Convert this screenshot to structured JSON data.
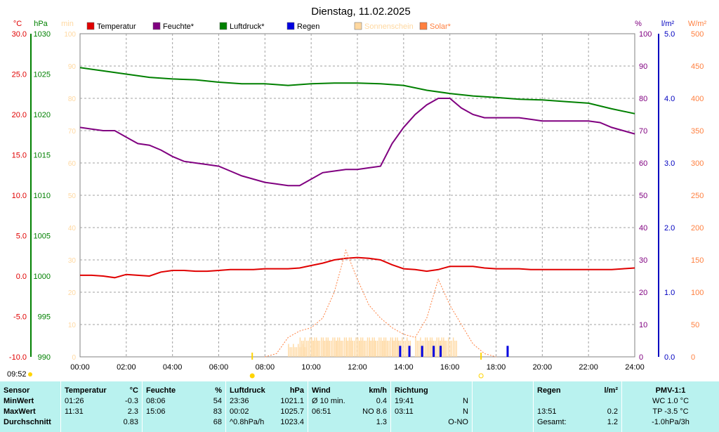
{
  "title": "Dienstag, 11.02.2025",
  "units": {
    "temp": "°C",
    "pressure": "hPa",
    "minutes": "min",
    "humidity": "%",
    "rain": "l/m²",
    "solar": "W/m²"
  },
  "legend": [
    {
      "label": "Temperatur",
      "color": "#e00000"
    },
    {
      "label": "Feuchte*",
      "color": "#800080"
    },
    {
      "label": "Luftdruck*",
      "color": "#008000"
    },
    {
      "label": "Regen",
      "color": "#0000e0"
    },
    {
      "label": "Sonnenschein",
      "color": "#ffd8a0"
    },
    {
      "label": "Solar*",
      "color": "#ff8040"
    }
  ],
  "time_stamp": "09:52",
  "chart_data": {
    "type": "line",
    "x_labels": [
      "00:00",
      "02:00",
      "04:00",
      "06:00",
      "08:00",
      "10:00",
      "12:00",
      "14:00",
      "16:00",
      "18:00",
      "20:00",
      "22:00",
      "24:00"
    ],
    "x_range": [
      0,
      24
    ],
    "axes": {
      "temp": {
        "range": [
          -10,
          30
        ],
        "ticks": [
          "30.0",
          "25.0",
          "20.0",
          "15.0",
          "10.0",
          "5.0",
          "0.0",
          "-5.0",
          "-10.0"
        ]
      },
      "pressure": {
        "range": [
          990,
          1030
        ],
        "ticks": [
          "1030",
          "1025",
          "1020",
          "1015",
          "1010",
          "1005",
          "1000",
          "995",
          "990"
        ]
      },
      "minutes": {
        "range": [
          0,
          100
        ],
        "ticks": [
          "100",
          "90",
          "80",
          "70",
          "60",
          "50",
          "40",
          "30",
          "20",
          "10",
          "0"
        ]
      },
      "humidity": {
        "range": [
          0,
          100
        ],
        "ticks": [
          "100",
          "90",
          "80",
          "70",
          "60",
          "50",
          "40",
          "30",
          "20",
          "10",
          "0"
        ]
      },
      "rain": {
        "range": [
          0,
          5
        ],
        "ticks": [
          "5.0",
          "4.0",
          "3.0",
          "2.0",
          "1.0",
          "0.0"
        ]
      },
      "solar": {
        "range": [
          0,
          500
        ],
        "ticks": [
          "500",
          "450",
          "400",
          "350",
          "300",
          "250",
          "200",
          "150",
          "100",
          "50",
          "0"
        ]
      }
    },
    "series": [
      {
        "name": "Temperatur",
        "axis": "temp",
        "color": "#e00000",
        "x": [
          0,
          0.5,
          1,
          1.5,
          2,
          2.5,
          3,
          3.5,
          4,
          4.5,
          5,
          5.5,
          6,
          6.5,
          7,
          7.5,
          8,
          8.5,
          9,
          9.5,
          10,
          10.5,
          11,
          11.5,
          12,
          12.5,
          13,
          13.5,
          14,
          14.5,
          15,
          15.5,
          16,
          16.5,
          17,
          17.5,
          18,
          18.5,
          19,
          19.5,
          20,
          20.5,
          21,
          21.5,
          22,
          22.5,
          23,
          23.5,
          24
        ],
        "values": [
          0.1,
          0.1,
          0,
          -0.2,
          0.2,
          0.1,
          0,
          0.5,
          0.7,
          0.7,
          0.6,
          0.6,
          0.7,
          0.8,
          0.8,
          0.8,
          0.9,
          0.9,
          0.9,
          1.0,
          1.3,
          1.6,
          2.0,
          2.2,
          2.3,
          2.2,
          2.0,
          1.4,
          0.9,
          0.8,
          0.6,
          0.8,
          1.2,
          1.2,
          1.2,
          1.0,
          0.9,
          0.9,
          0.9,
          0.8,
          0.8,
          0.8,
          0.8,
          0.8,
          0.8,
          0.8,
          0.8,
          0.9,
          1.0
        ]
      },
      {
        "name": "Feuchte*",
        "axis": "humidity",
        "color": "#800080",
        "x": [
          0,
          0.5,
          1,
          1.5,
          2,
          2.5,
          3,
          3.5,
          4,
          4.5,
          5,
          5.5,
          6,
          6.5,
          7,
          7.5,
          8,
          8.5,
          9,
          9.5,
          10,
          10.5,
          11,
          11.5,
          12,
          12.5,
          13,
          13.5,
          14,
          14.5,
          15,
          15.5,
          16,
          16.5,
          17,
          17.5,
          18,
          18.5,
          19,
          19.5,
          20,
          20.5,
          21,
          21.5,
          22,
          22.5,
          23,
          23.5,
          24
        ],
        "values": [
          71,
          70.5,
          70,
          70,
          68,
          66,
          65.5,
          64,
          62,
          60.5,
          60,
          59.5,
          59,
          57.5,
          56,
          55,
          54,
          53.5,
          53,
          53,
          55,
          57,
          57.5,
          58,
          58,
          58.5,
          59,
          66,
          71,
          75,
          78,
          80,
          80,
          77,
          75,
          74,
          74,
          74,
          74,
          73.5,
          73,
          73,
          73,
          73,
          73,
          72.5,
          71,
          70,
          69
        ]
      },
      {
        "name": "Luftdruck*",
        "axis": "pressure",
        "color": "#008000",
        "x": [
          0,
          1,
          2,
          3,
          4,
          5,
          6,
          7,
          8,
          9,
          10,
          11,
          12,
          13,
          14,
          15,
          16,
          17,
          18,
          19,
          20,
          21,
          22,
          23,
          24
        ],
        "values": [
          1025.8,
          1025.4,
          1025.0,
          1024.6,
          1024.4,
          1024.3,
          1024.0,
          1023.8,
          1023.8,
          1023.6,
          1023.8,
          1023.9,
          1023.9,
          1023.8,
          1023.6,
          1023.0,
          1022.6,
          1022.3,
          1022.1,
          1021.9,
          1021.8,
          1021.6,
          1021.4,
          1020.7,
          1020.1
        ]
      },
      {
        "name": "Solar*",
        "axis": "solar",
        "color": "#ff8040",
        "dashed": true,
        "x": [
          8,
          8.5,
          9,
          9.5,
          10,
          10.5,
          11,
          11.5,
          12,
          12.5,
          13,
          13.5,
          14,
          14.5,
          15,
          15.5,
          16,
          16.5,
          17,
          17.5,
          18
        ],
        "values": [
          0,
          5,
          30,
          40,
          45,
          60,
          100,
          165,
          120,
          80,
          60,
          45,
          35,
          30,
          60,
          120,
          80,
          50,
          20,
          5,
          0
        ]
      },
      {
        "name": "Sonnenschein",
        "axis": "minutes",
        "color": "#ffd8a0",
        "type": "bar",
        "x": [
          9,
          9.5,
          10,
          10.5,
          11,
          11.5,
          12,
          12.5,
          13,
          13.5,
          14.5,
          15,
          15.5
        ],
        "values": [
          3,
          5,
          5,
          5,
          5,
          5,
          5,
          5,
          5,
          5,
          5,
          5,
          5
        ]
      },
      {
        "name": "Regen",
        "axis": "rain",
        "color": "#0000e0",
        "type": "bar",
        "x": [
          13.85,
          14.25,
          14.8,
          15.3,
          15.6,
          18.5
        ],
        "values": [
          0.2,
          0.2,
          0.2,
          0.2,
          0.2,
          0.2
        ]
      }
    ],
    "markers": [
      {
        "x": 7.45,
        "symbol": "sun"
      },
      {
        "x": 17.35,
        "symbol": "moon"
      }
    ]
  },
  "stats": {
    "sensor": {
      "header": "Sensor",
      "min": "MinWert",
      "max": "MaxWert",
      "avg": "Durchschnitt"
    },
    "temperature": {
      "header": "Temperatur",
      "unit": "°C",
      "min_time": "01:26",
      "min": "-0.3",
      "max_time": "11:31",
      "max": "2.3",
      "avg": "0.83"
    },
    "humidity": {
      "header": "Feuchte",
      "unit": "%",
      "min_time": "08:06",
      "min": "54",
      "max_time": "15:06",
      "max": "83",
      "avg": "68"
    },
    "pressure": {
      "header": "Luftdruck",
      "unit": "hPa",
      "min_time": "23:36",
      "min": "1021.1",
      "max_time": "00:02",
      "max": "1025.7",
      "avg_label": "^0.8hPa/h",
      "avg": "1023.4"
    },
    "wind": {
      "header": "Wind",
      "unit": "km/h",
      "min_label": "Ø 10 min.",
      "min": "0.4",
      "max_time": "06:51",
      "max": "NO 8.6",
      "avg": "1.3"
    },
    "direction": {
      "header": "Richtung",
      "min_time": "19:41",
      "min": "N",
      "max_time": "03:11",
      "max": "N",
      "avg": "O-NO"
    },
    "rain": {
      "header": "Regen",
      "unit": "l/m²",
      "max_time": "13:51",
      "max": "0.2",
      "total_label": "Gesamt:",
      "total": "1.2"
    },
    "pmv": {
      "header": "PMV-1:1",
      "wc": "WC 1.0 °C",
      "tp": "TP -3.5 °C",
      "trend": "-1.0hPa/3h"
    }
  }
}
